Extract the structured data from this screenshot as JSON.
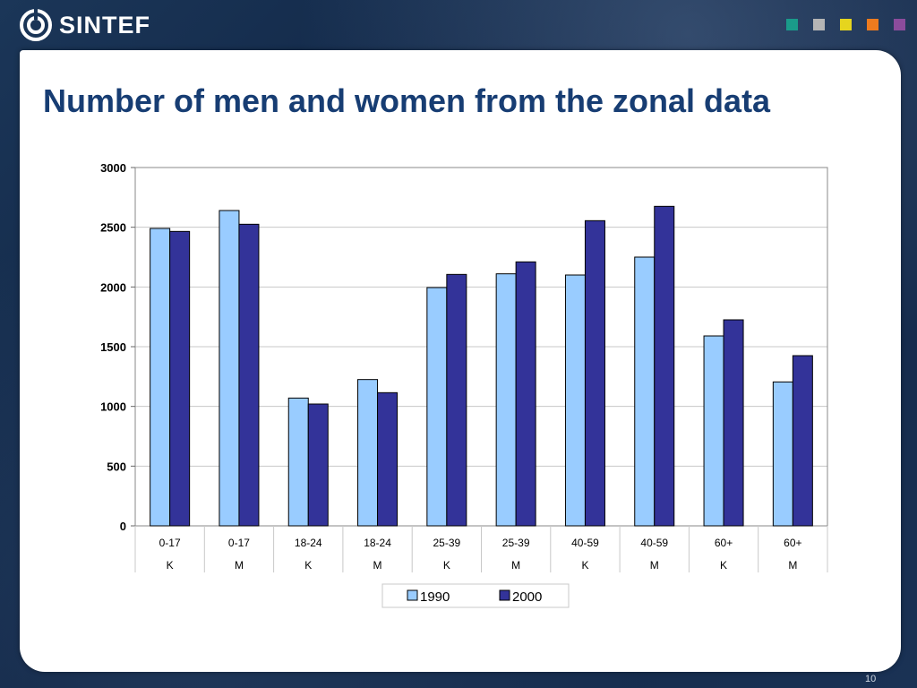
{
  "brand": {
    "logo_text": "SINTEF"
  },
  "header_squares": [
    "#1a9b8a",
    "#b5b5b5",
    "#e6d51e",
    "#ee7b1e",
    "#8b4c9c"
  ],
  "slide": {
    "title": "Number of men and women from the zonal data",
    "page_number": "10"
  },
  "chart_data": {
    "type": "bar",
    "title": "",
    "xlabel": "",
    "ylabel": "",
    "ylim": [
      0,
      3000
    ],
    "yticks": [
      0,
      500,
      1000,
      1500,
      2000,
      2500,
      3000
    ],
    "grid": true,
    "legend_position": "bottom",
    "categories": [
      {
        "age": "0-17",
        "sex": "K"
      },
      {
        "age": "0-17",
        "sex": "M"
      },
      {
        "age": "18-24",
        "sex": "K"
      },
      {
        "age": "18-24",
        "sex": "M"
      },
      {
        "age": "25-39",
        "sex": "K"
      },
      {
        "age": "25-39",
        "sex": "M"
      },
      {
        "age": "40-59",
        "sex": "K"
      },
      {
        "age": "40-59",
        "sex": "M"
      },
      {
        "age": "60+",
        "sex": "K"
      },
      {
        "age": "60+",
        "sex": "M"
      }
    ],
    "series": [
      {
        "name": "1990",
        "color": "#99ccff",
        "values": [
          2490,
          2640,
          1070,
          1225,
          1995,
          2110,
          2100,
          2250,
          1590,
          1205
        ]
      },
      {
        "name": "2000",
        "color": "#333399",
        "values": [
          2465,
          2525,
          1020,
          1115,
          2105,
          2210,
          2555,
          2675,
          1725,
          1425
        ]
      }
    ]
  }
}
